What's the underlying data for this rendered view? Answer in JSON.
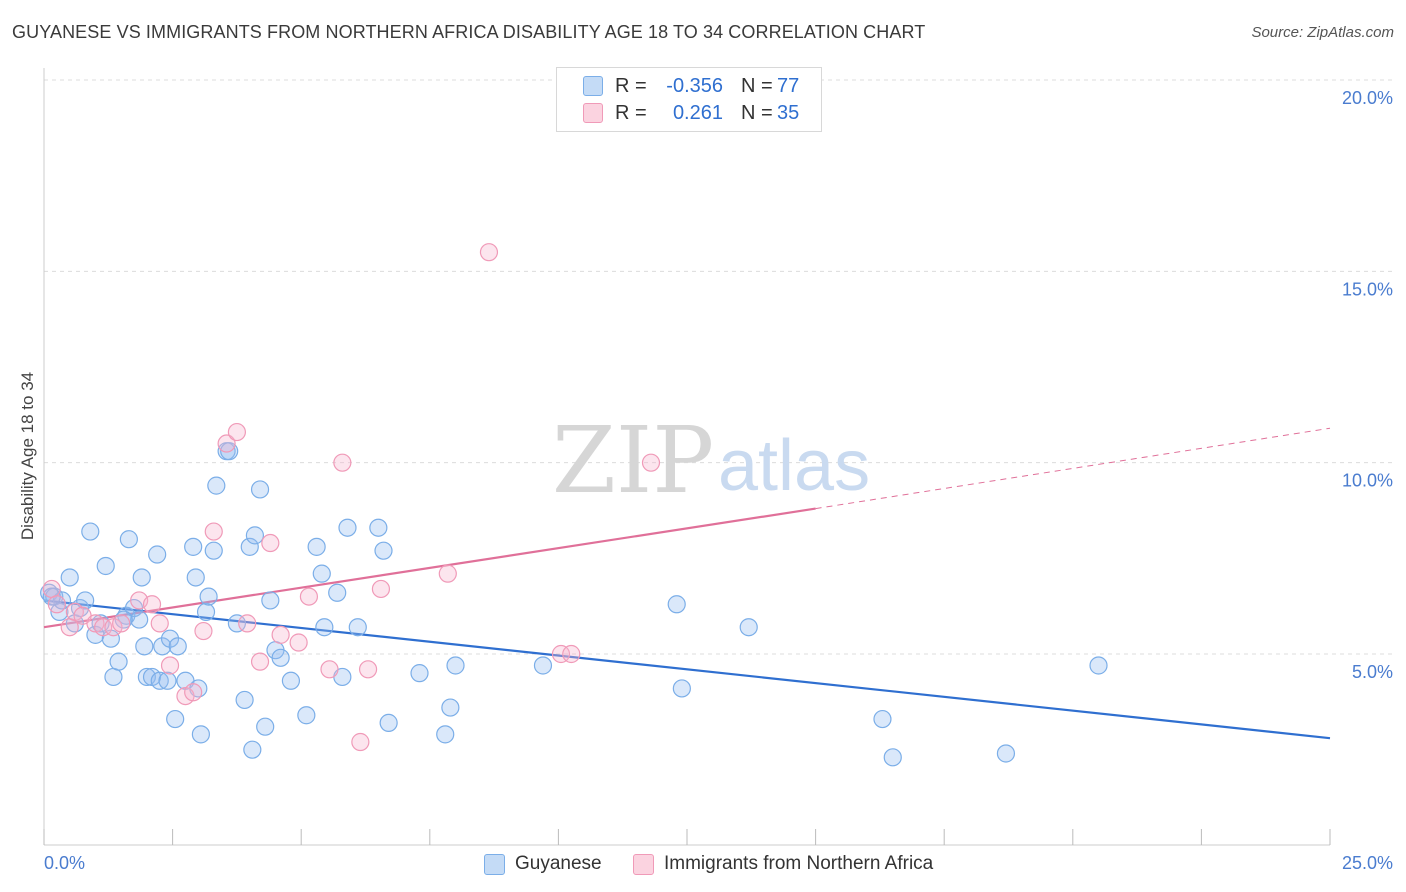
{
  "title": "GUYANESE VS IMMIGRANTS FROM NORTHERN AFRICA DISABILITY AGE 18 TO 34 CORRELATION CHART",
  "source": "Source: ZipAtlas.com",
  "watermark": {
    "zip": "ZIP",
    "atlas": "atlas"
  },
  "legend_top": {
    "rows": [
      {
        "r_label": "R =",
        "r_value": "-0.356",
        "n_label": "N =",
        "n_value": "77",
        "color": "#7baee8"
      },
      {
        "r_label": "R =",
        "r_value": "0.261",
        "n_label": "N =",
        "n_value": "35",
        "color": "#f09ab8"
      }
    ]
  },
  "legend_bottom": [
    {
      "label": "Guyanese",
      "color": "#7baee8"
    },
    {
      "label": "Immigrants from Northern Africa",
      "color": "#f09ab8"
    }
  ],
  "chart_data": {
    "type": "scatter",
    "title": "GUYANESE VS IMMIGRANTS FROM NORTHERN AFRICA DISABILITY AGE 18 TO 34 CORRELATION CHART",
    "xlabel": "",
    "ylabel": "Disability Age 18 to 34",
    "xlim": [
      0,
      25
    ],
    "ylim": [
      0,
      20.5
    ],
    "x_tick_labels": [
      "0.0%",
      "25.0%"
    ],
    "y_ticks": [
      5,
      10,
      15,
      20
    ],
    "y_tick_labels": [
      "5.0%",
      "10.0%",
      "15.0%",
      "20.0%"
    ],
    "grid": true,
    "legend_placement": "top-center and bottom",
    "series": [
      {
        "name": "Guyanese",
        "color": "#7baee8",
        "line_color": "#2f6fd0",
        "trend": {
          "x0": 0,
          "y0": 6.4,
          "x1": 25,
          "y1": 2.8
        },
        "points": [
          [
            0.1,
            6.6
          ],
          [
            0.2,
            6.5
          ],
          [
            0.3,
            6.1
          ],
          [
            0.35,
            6.4
          ],
          [
            0.5,
            7.0
          ],
          [
            0.6,
            5.8
          ],
          [
            0.7,
            6.2
          ],
          [
            0.8,
            6.4
          ],
          [
            0.9,
            8.2
          ],
          [
            1.0,
            5.5
          ],
          [
            1.1,
            5.8
          ],
          [
            1.2,
            7.3
          ],
          [
            1.3,
            5.4
          ],
          [
            1.35,
            4.4
          ],
          [
            1.45,
            4.8
          ],
          [
            1.6,
            6.0
          ],
          [
            1.65,
            8.0
          ],
          [
            1.75,
            6.2
          ],
          [
            1.85,
            5.9
          ],
          [
            1.9,
            7.0
          ],
          [
            1.95,
            5.2
          ],
          [
            2.0,
            4.4
          ],
          [
            2.1,
            4.4
          ],
          [
            2.2,
            7.6
          ],
          [
            2.25,
            4.3
          ],
          [
            2.3,
            5.2
          ],
          [
            2.45,
            5.4
          ],
          [
            2.55,
            3.3
          ],
          [
            2.6,
            5.2
          ],
          [
            2.75,
            4.3
          ],
          [
            2.9,
            7.8
          ],
          [
            2.95,
            7.0
          ],
          [
            3.0,
            4.1
          ],
          [
            3.05,
            2.9
          ],
          [
            3.15,
            6.1
          ],
          [
            3.2,
            6.5
          ],
          [
            3.3,
            7.7
          ],
          [
            3.35,
            9.4
          ],
          [
            3.55,
            10.3
          ],
          [
            3.75,
            5.8
          ],
          [
            3.9,
            3.8
          ],
          [
            4.0,
            7.8
          ],
          [
            4.05,
            2.5
          ],
          [
            4.1,
            8.1
          ],
          [
            4.2,
            9.3
          ],
          [
            4.3,
            3.1
          ],
          [
            4.4,
            6.4
          ],
          [
            4.5,
            5.1
          ],
          [
            4.6,
            4.9
          ],
          [
            4.8,
            4.3
          ],
          [
            5.1,
            3.4
          ],
          [
            5.3,
            7.8
          ],
          [
            5.4,
            7.1
          ],
          [
            5.45,
            5.7
          ],
          [
            5.7,
            6.6
          ],
          [
            5.8,
            4.4
          ],
          [
            5.9,
            8.3
          ],
          [
            6.1,
            5.7
          ],
          [
            6.5,
            8.3
          ],
          [
            6.6,
            7.7
          ],
          [
            6.7,
            3.2
          ],
          [
            7.3,
            4.5
          ],
          [
            7.8,
            2.9
          ],
          [
            7.9,
            3.6
          ],
          [
            8.0,
            4.7
          ],
          [
            9.7,
            4.7
          ],
          [
            12.3,
            6.3
          ],
          [
            12.4,
            4.1
          ],
          [
            13.7,
            5.7
          ],
          [
            16.3,
            3.3
          ],
          [
            16.5,
            2.3
          ],
          [
            18.7,
            2.4
          ],
          [
            20.5,
            4.7
          ],
          [
            0.15,
            6.5
          ],
          [
            1.55,
            5.9
          ],
          [
            2.4,
            4.3
          ],
          [
            3.6,
            10.3
          ]
        ]
      },
      {
        "name": "Immigrants from Northern Africa",
        "color": "#f09ab8",
        "line_color": "#e07099",
        "trend": {
          "x0": 0,
          "y0": 5.7,
          "x1": 15,
          "y1": 8.8,
          "x_dash_end": 25,
          "y_dash_end": 10.9
        },
        "points": [
          [
            0.15,
            6.7
          ],
          [
            0.25,
            6.3
          ],
          [
            0.5,
            5.7
          ],
          [
            0.6,
            6.1
          ],
          [
            0.75,
            6.0
          ],
          [
            1.0,
            5.8
          ],
          [
            1.15,
            5.7
          ],
          [
            1.35,
            5.7
          ],
          [
            1.5,
            5.8
          ],
          [
            1.85,
            6.4
          ],
          [
            2.1,
            6.3
          ],
          [
            2.25,
            5.8
          ],
          [
            2.45,
            4.7
          ],
          [
            2.75,
            3.9
          ],
          [
            2.9,
            4.0
          ],
          [
            3.1,
            5.6
          ],
          [
            3.3,
            8.2
          ],
          [
            3.55,
            10.5
          ],
          [
            3.75,
            10.8
          ],
          [
            3.95,
            5.8
          ],
          [
            4.2,
            4.8
          ],
          [
            4.4,
            7.9
          ],
          [
            4.6,
            5.5
          ],
          [
            4.95,
            5.3
          ],
          [
            5.15,
            6.5
          ],
          [
            5.55,
            4.6
          ],
          [
            5.8,
            10.0
          ],
          [
            6.15,
            2.7
          ],
          [
            6.3,
            4.6
          ],
          [
            6.55,
            6.7
          ],
          [
            7.85,
            7.1
          ],
          [
            8.65,
            15.5
          ],
          [
            10.05,
            5.0
          ],
          [
            10.25,
            5.0
          ],
          [
            11.8,
            10.0
          ]
        ]
      }
    ]
  }
}
